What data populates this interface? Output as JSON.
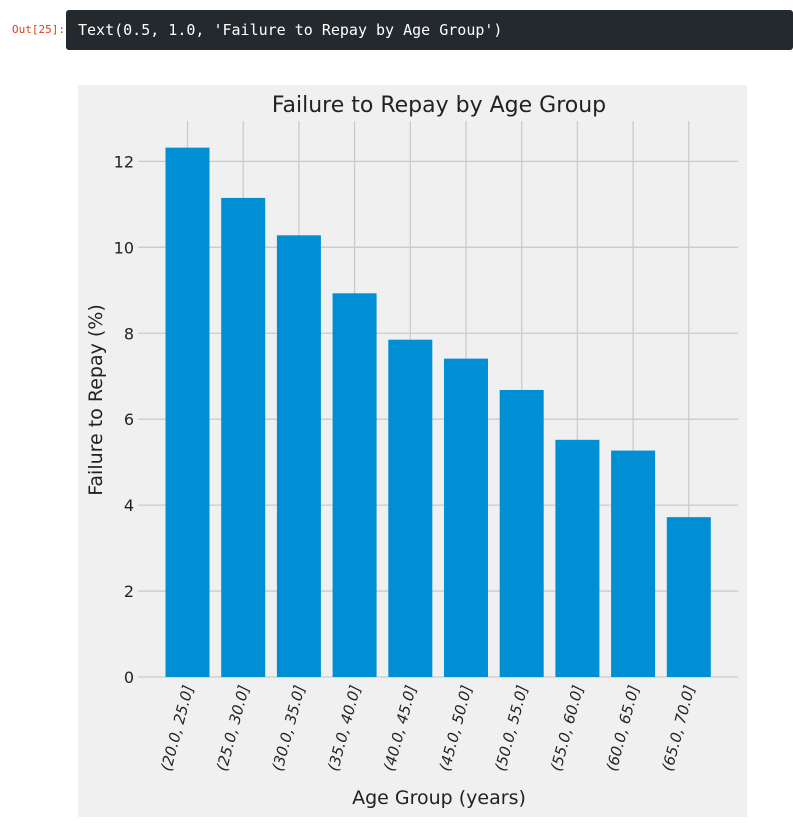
{
  "cell": {
    "prompt": "Out[25]:",
    "output_text": "Text(0.5, 1.0, 'Failure to Repay by Age Group')"
  },
  "chart_data": {
    "type": "bar",
    "title": "Failure to Repay by Age Group",
    "xlabel": "Age Group (years)",
    "ylabel": "Failure to Repay (%)",
    "categories": [
      "(20.0, 25.0]",
      "(25.0, 30.0]",
      "(30.0, 35.0]",
      "(35.0, 40.0]",
      "(40.0, 45.0]",
      "(45.0, 50.0]",
      "(50.0, 55.0]",
      "(55.0, 60.0]",
      "(60.0, 65.0]",
      "(65.0, 70.0]"
    ],
    "values": [
      12.32,
      11.15,
      10.28,
      8.93,
      7.85,
      7.41,
      6.68,
      5.52,
      5.27,
      3.72
    ],
    "yticks": [
      0,
      2,
      4,
      6,
      8,
      10,
      12
    ],
    "ylim": [
      0,
      12.94
    ],
    "grid": true,
    "bar_color": "#008fd5",
    "background_color": "#f0f0f0",
    "grid_color": "#cbcbcb"
  }
}
